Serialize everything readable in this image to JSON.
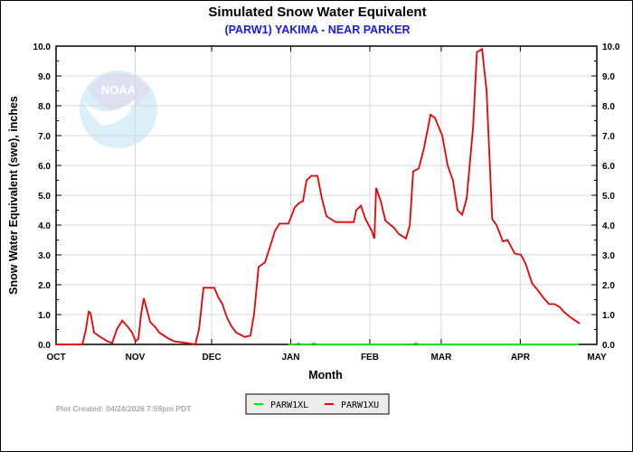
{
  "chart_data": {
    "type": "line",
    "title": "Simulated Snow Water Equivalent",
    "subtitle": "(PARW1) YAKIMA - NEAR PARKER",
    "xlabel": "Month",
    "ylabel": "Snow Water Equivalent (swe),  inches",
    "x_unit": "days since Oct 1",
    "xlim": [
      0,
      212
    ],
    "ylim": [
      0,
      10
    ],
    "grid": true,
    "x_ticks": [
      {
        "label": "OCT",
        "value": 0
      },
      {
        "label": "NOV",
        "value": 31
      },
      {
        "label": "DEC",
        "value": 61
      },
      {
        "label": "JAN",
        "value": 92
      },
      {
        "label": "FEB",
        "value": 123
      },
      {
        "label": "MAR",
        "value": 151
      },
      {
        "label": "APR",
        "value": 182
      },
      {
        "label": "MAY",
        "value": 212
      }
    ],
    "y_ticks": [
      "0.0",
      "1.0",
      "2.0",
      "3.0",
      "4.0",
      "5.0",
      "6.0",
      "7.0",
      "8.0",
      "9.0",
      "10.0"
    ],
    "legend_position": "bottom-center",
    "series": [
      {
        "name": "PARW1XL",
        "color": "#00ee00",
        "x": [
          91,
          94,
          95,
          96,
          100,
          101,
          102,
          140,
          141,
          142,
          143,
          205
        ],
        "y": [
          0,
          0,
          0.04,
          0,
          0,
          0.04,
          0,
          0,
          0.04,
          0,
          0,
          0
        ]
      },
      {
        "name": "PARW1XU",
        "color": "#ee0000",
        "x": [
          0,
          10.3,
          11.7,
          12.8,
          13.5,
          14.9,
          17.4,
          20.2,
          22,
          23.8,
          25.9,
          28,
          29.8,
          31.2,
          32.3,
          33.3,
          34.4,
          36.9,
          38.7,
          40.4,
          44,
          46.5,
          51,
          54.6,
          56,
          56.7,
          57.8,
          59.9,
          62,
          63.5,
          65.2,
          67,
          68.8,
          70.6,
          74,
          76.2,
          77.6,
          79.4,
          81.9,
          84,
          85.8,
          87.6,
          91.1,
          91.8,
          93.6,
          95.4,
          96.8,
          98.2,
          100,
          102.5,
          104.2,
          106,
          109.6,
          116.7,
          117.7,
          119.5,
          121.3,
          123.8,
          124.8,
          125.5,
          127.3,
          129.1,
          132.6,
          134.4,
          137.2,
          138.7,
          140,
          142.2,
          144.3,
          146.8,
          148.5,
          151.4,
          153.5,
          155.6,
          157.4,
          159.2,
          161,
          163.5,
          165,
          167,
          168.8,
          171,
          172.7,
          175.2,
          177,
          179.8,
          182.3,
          184.1,
          186.6,
          189,
          191.2,
          193.3,
          195.4,
          197.5,
          199,
          201.8,
          205.3
        ],
        "y": [
          0,
          0,
          0.5,
          1.1,
          1.05,
          0.4,
          0.25,
          0.1,
          0.05,
          0.5,
          0.8,
          0.6,
          0.4,
          0.1,
          0.2,
          1.0,
          1.55,
          0.75,
          0.6,
          0.4,
          0.2,
          0.1,
          0.05,
          0,
          0.5,
          1.0,
          1.9,
          1.9,
          1.9,
          1.6,
          1.35,
          0.9,
          0.6,
          0.4,
          0.25,
          0.3,
          1.0,
          2.6,
          2.75,
          3.3,
          3.8,
          4.05,
          4.05,
          4.2,
          4.6,
          4.75,
          4.8,
          5.5,
          5.65,
          5.65,
          4.9,
          4.3,
          4.1,
          4.1,
          4.5,
          4.65,
          4.2,
          3.8,
          3.55,
          5.25,
          4.8,
          4.15,
          3.9,
          3.7,
          3.55,
          4.0,
          5.8,
          5.9,
          6.6,
          7.7,
          7.6,
          7.0,
          6.0,
          5.5,
          4.5,
          4.35,
          4.9,
          7.3,
          9.8,
          9.9,
          8.5,
          4.2,
          4.0,
          3.45,
          3.5,
          3.05,
          3.0,
          2.7,
          2.05,
          1.8,
          1.55,
          1.35,
          1.35,
          1.25,
          1.1,
          0.9,
          0.7
        ]
      }
    ],
    "footer": "Plot Created: 04/24/2026 7:59pm PDT",
    "watermark": "NOAA"
  }
}
